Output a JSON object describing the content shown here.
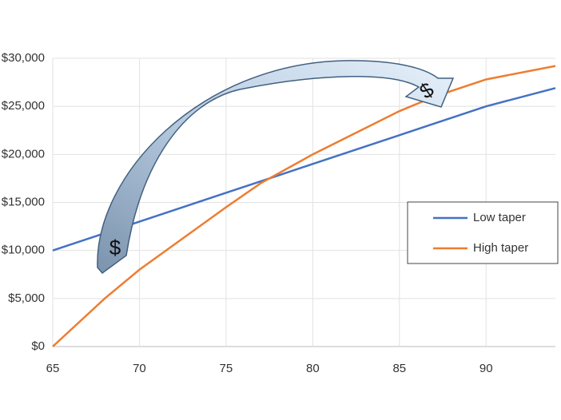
{
  "chart_data": {
    "type": "line",
    "x": [
      65,
      68,
      70,
      75,
      77,
      80,
      85,
      87,
      90,
      94
    ],
    "series": [
      {
        "name": "Low taper",
        "color": "#4472c4",
        "values": [
          10000,
          11800,
          13000,
          16000,
          17200,
          19000,
          22000,
          23200,
          25000,
          26900
        ]
      },
      {
        "name": "High taper",
        "color": "#ed7d31",
        "values": [
          0,
          5000,
          8000,
          14500,
          17000,
          20000,
          24500,
          26000,
          27800,
          29200
        ]
      }
    ],
    "xlim": [
      65,
      94
    ],
    "xticks": [
      65,
      70,
      75,
      80,
      85,
      90
    ],
    "ylim": [
      0,
      30000
    ],
    "yticks": [
      {
        "value": 0,
        "label": "$0"
      },
      {
        "value": 5000,
        "label": "$5,000"
      },
      {
        "value": 10000,
        "label": "$10,000"
      },
      {
        "value": 15000,
        "label": "$15,000"
      },
      {
        "value": 20000,
        "label": "$20,000"
      },
      {
        "value": 25000,
        "label": "$25,000"
      },
      {
        "value": 30000,
        "label": "$30,000"
      }
    ],
    "grid": true,
    "legend": "right",
    "annotations": [
      "$",
      "$"
    ]
  }
}
